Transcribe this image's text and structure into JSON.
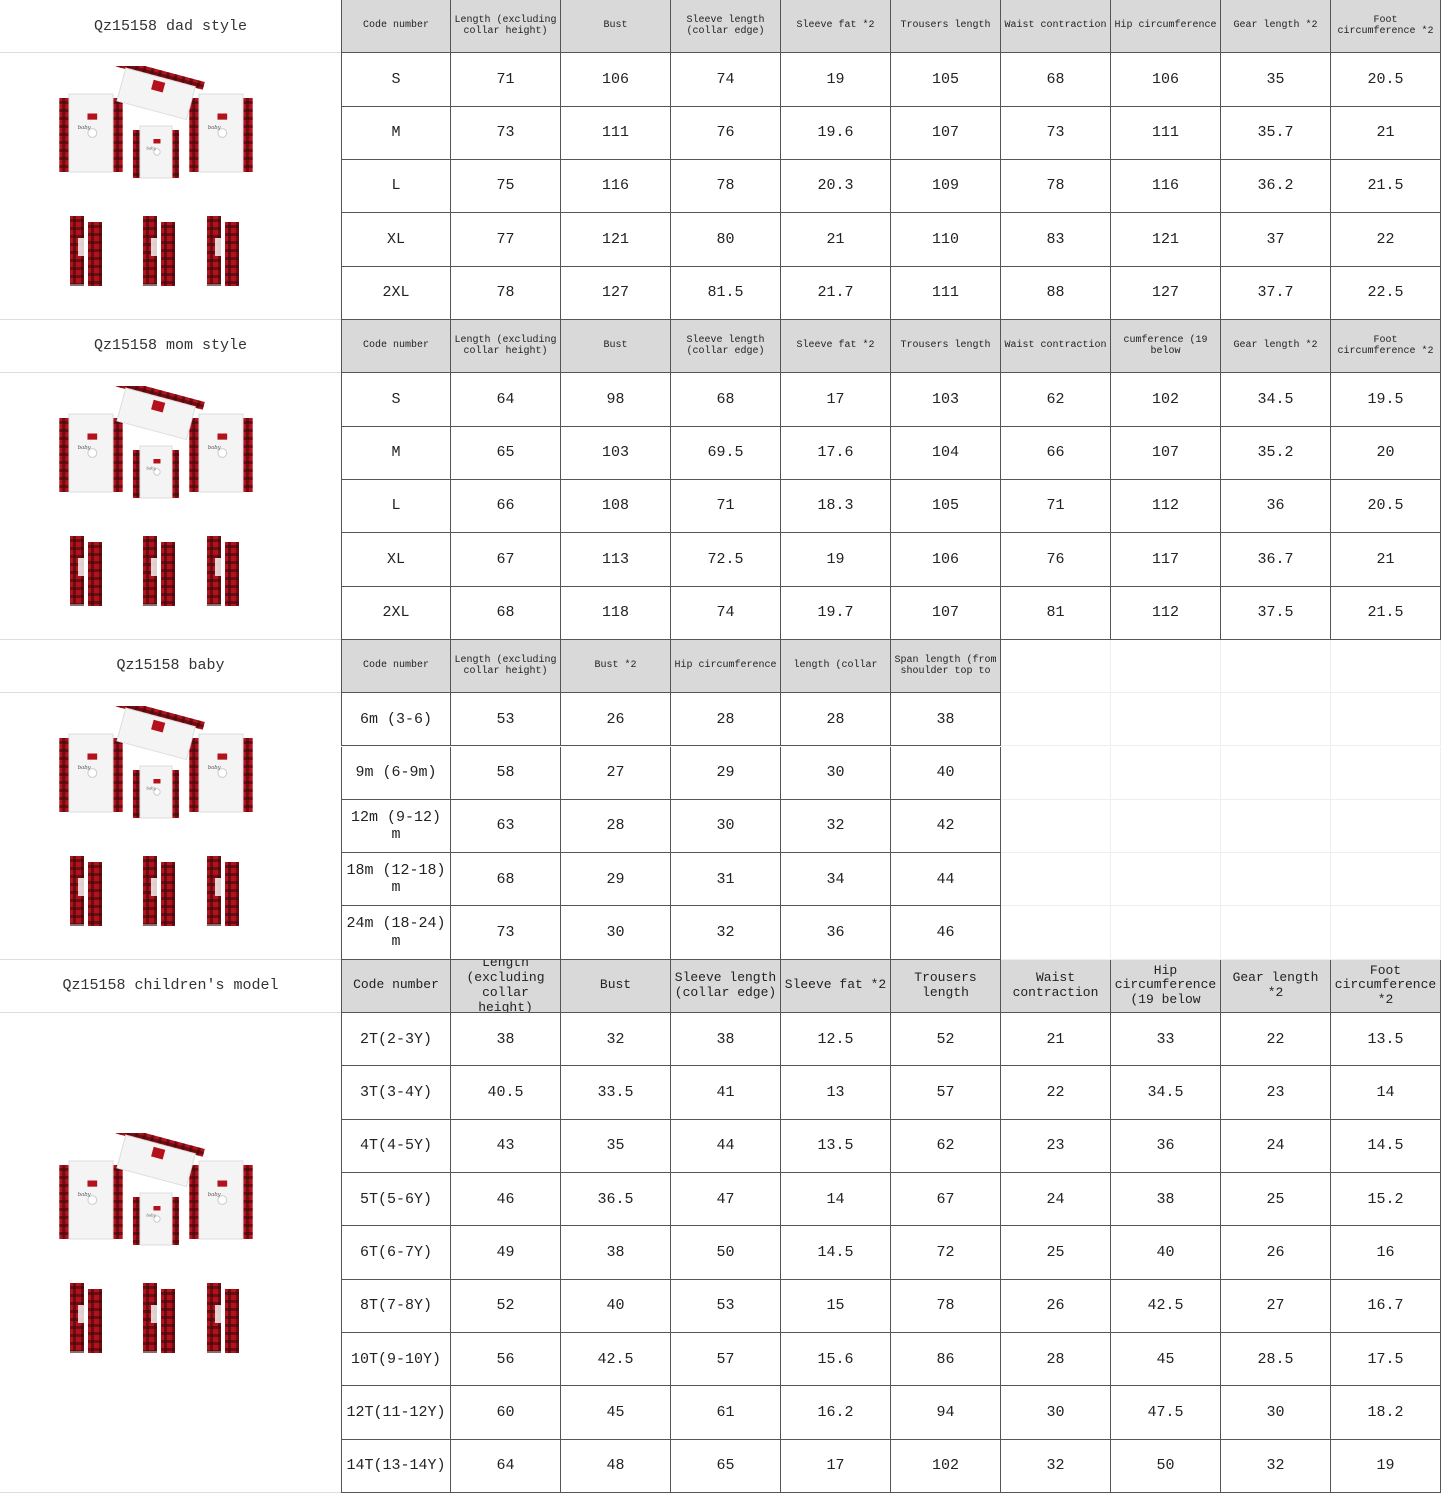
{
  "colors": {
    "header_bg": "#d9d9d9",
    "plaid_red": "#b3121c",
    "plaid_dark": "#3a0a0c"
  },
  "sections": [
    {
      "title": "Qz15158 dad style",
      "image": "family-pajama-set-image",
      "headers": [
        "Code number",
        "Length (excluding collar height)",
        "Bust",
        "Sleeve length (collar edge)",
        "Sleeve fat *2",
        "Trousers length",
        "Waist contraction",
        "Hip circumference",
        "Gear length *2",
        "Foot circumference *2"
      ],
      "rows": [
        [
          "S",
          "71",
          "106",
          "74",
          "19",
          "105",
          "68",
          "106",
          "35",
          "20.5"
        ],
        [
          "M",
          "73",
          "111",
          "76",
          "19.6",
          "107",
          "73",
          "111",
          "35.7",
          "21"
        ],
        [
          "L",
          "75",
          "116",
          "78",
          "20.3",
          "109",
          "78",
          "116",
          "36.2",
          "21.5"
        ],
        [
          "XL",
          "77",
          "121",
          "80",
          "21",
          "110",
          "83",
          "121",
          "37",
          "22"
        ],
        [
          "2XL",
          "78",
          "127",
          "81.5",
          "21.7",
          "111",
          "88",
          "127",
          "37.7",
          "22.5"
        ]
      ]
    },
    {
      "title": "Qz15158 mom style",
      "image": "family-pajama-set-image",
      "headers": [
        "Code number",
        "Length (excluding collar height)",
        "Bust",
        "Sleeve length (collar edge)",
        "Sleeve fat *2",
        "Trousers length",
        "Waist contraction",
        "cumference (19 below",
        "Gear length *2",
        "Foot circumference *2"
      ],
      "rows": [
        [
          "S",
          "64",
          "98",
          "68",
          "17",
          "103",
          "62",
          "102",
          "34.5",
          "19.5"
        ],
        [
          "M",
          "65",
          "103",
          "69.5",
          "17.6",
          "104",
          "66",
          "107",
          "35.2",
          "20"
        ],
        [
          "L",
          "66",
          "108",
          "71",
          "18.3",
          "105",
          "71",
          "112",
          "36",
          "20.5"
        ],
        [
          "XL",
          "67",
          "113",
          "72.5",
          "19",
          "106",
          "76",
          "117",
          "36.7",
          "21"
        ],
        [
          "2XL",
          "68",
          "118",
          "74",
          "19.7",
          "107",
          "81",
          "112",
          "37.5",
          "21.5"
        ]
      ]
    },
    {
      "title": "Qz15158 baby",
      "image": "family-pajama-set-image",
      "headers": [
        "Code number",
        "Length (excluding collar height)",
        "Bust *2",
        "Hip circumference",
        "length (collar",
        "Span length (from shoulder top to"
      ],
      "rows": [
        [
          "6m (3-6)",
          "53",
          "26",
          "28",
          "28",
          "38"
        ],
        [
          "9m (6-9m)",
          "58",
          "27",
          "29",
          "30",
          "40"
        ],
        [
          "12m (9-12) m",
          "63",
          "28",
          "30",
          "32",
          "42"
        ],
        [
          "18m (12-18) m",
          "68",
          "29",
          "31",
          "34",
          "44"
        ],
        [
          "24m (18-24) m",
          "73",
          "30",
          "32",
          "36",
          "46"
        ]
      ]
    },
    {
      "title": "Qz15158 children's model",
      "image": "family-pajama-set-image",
      "headers": [
        "Code number",
        "Length (excluding collar height)",
        "Bust",
        "Sleeve length (collar edge)",
        "Sleeve fat *2",
        "Trousers length",
        "Waist contraction",
        "Hip circumference (19 below",
        "Gear length *2",
        "Foot circumference *2"
      ],
      "rows": [
        [
          "2T(2-3Y)",
          "38",
          "32",
          "38",
          "12.5",
          "52",
          "21",
          "33",
          "22",
          "13.5"
        ],
        [
          "3T(3-4Y)",
          "40.5",
          "33.5",
          "41",
          "13",
          "57",
          "22",
          "34.5",
          "23",
          "14"
        ],
        [
          "4T(4-5Y)",
          "43",
          "35",
          "44",
          "13.5",
          "62",
          "23",
          "36",
          "24",
          "14.5"
        ],
        [
          "5T(5-6Y)",
          "46",
          "36.5",
          "47",
          "14",
          "67",
          "24",
          "38",
          "25",
          "15.2"
        ],
        [
          "6T(6-7Y)",
          "49",
          "38",
          "50",
          "14.5",
          "72",
          "25",
          "40",
          "26",
          "16"
        ],
        [
          "8T(7-8Y)",
          "52",
          "40",
          "53",
          "15",
          "78",
          "26",
          "42.5",
          "27",
          "16.7"
        ],
        [
          "10T(9-10Y)",
          "56",
          "42.5",
          "57",
          "15.6",
          "86",
          "28",
          "45",
          "28.5",
          "17.5"
        ],
        [
          "12T(11-12Y)",
          "60",
          "45",
          "61",
          "16.2",
          "94",
          "30",
          "47.5",
          "30",
          "18.2"
        ],
        [
          "14T(13-14Y)",
          "64",
          "48",
          "65",
          "17",
          "102",
          "32",
          "50",
          "32",
          "19"
        ]
      ]
    }
  ]
}
